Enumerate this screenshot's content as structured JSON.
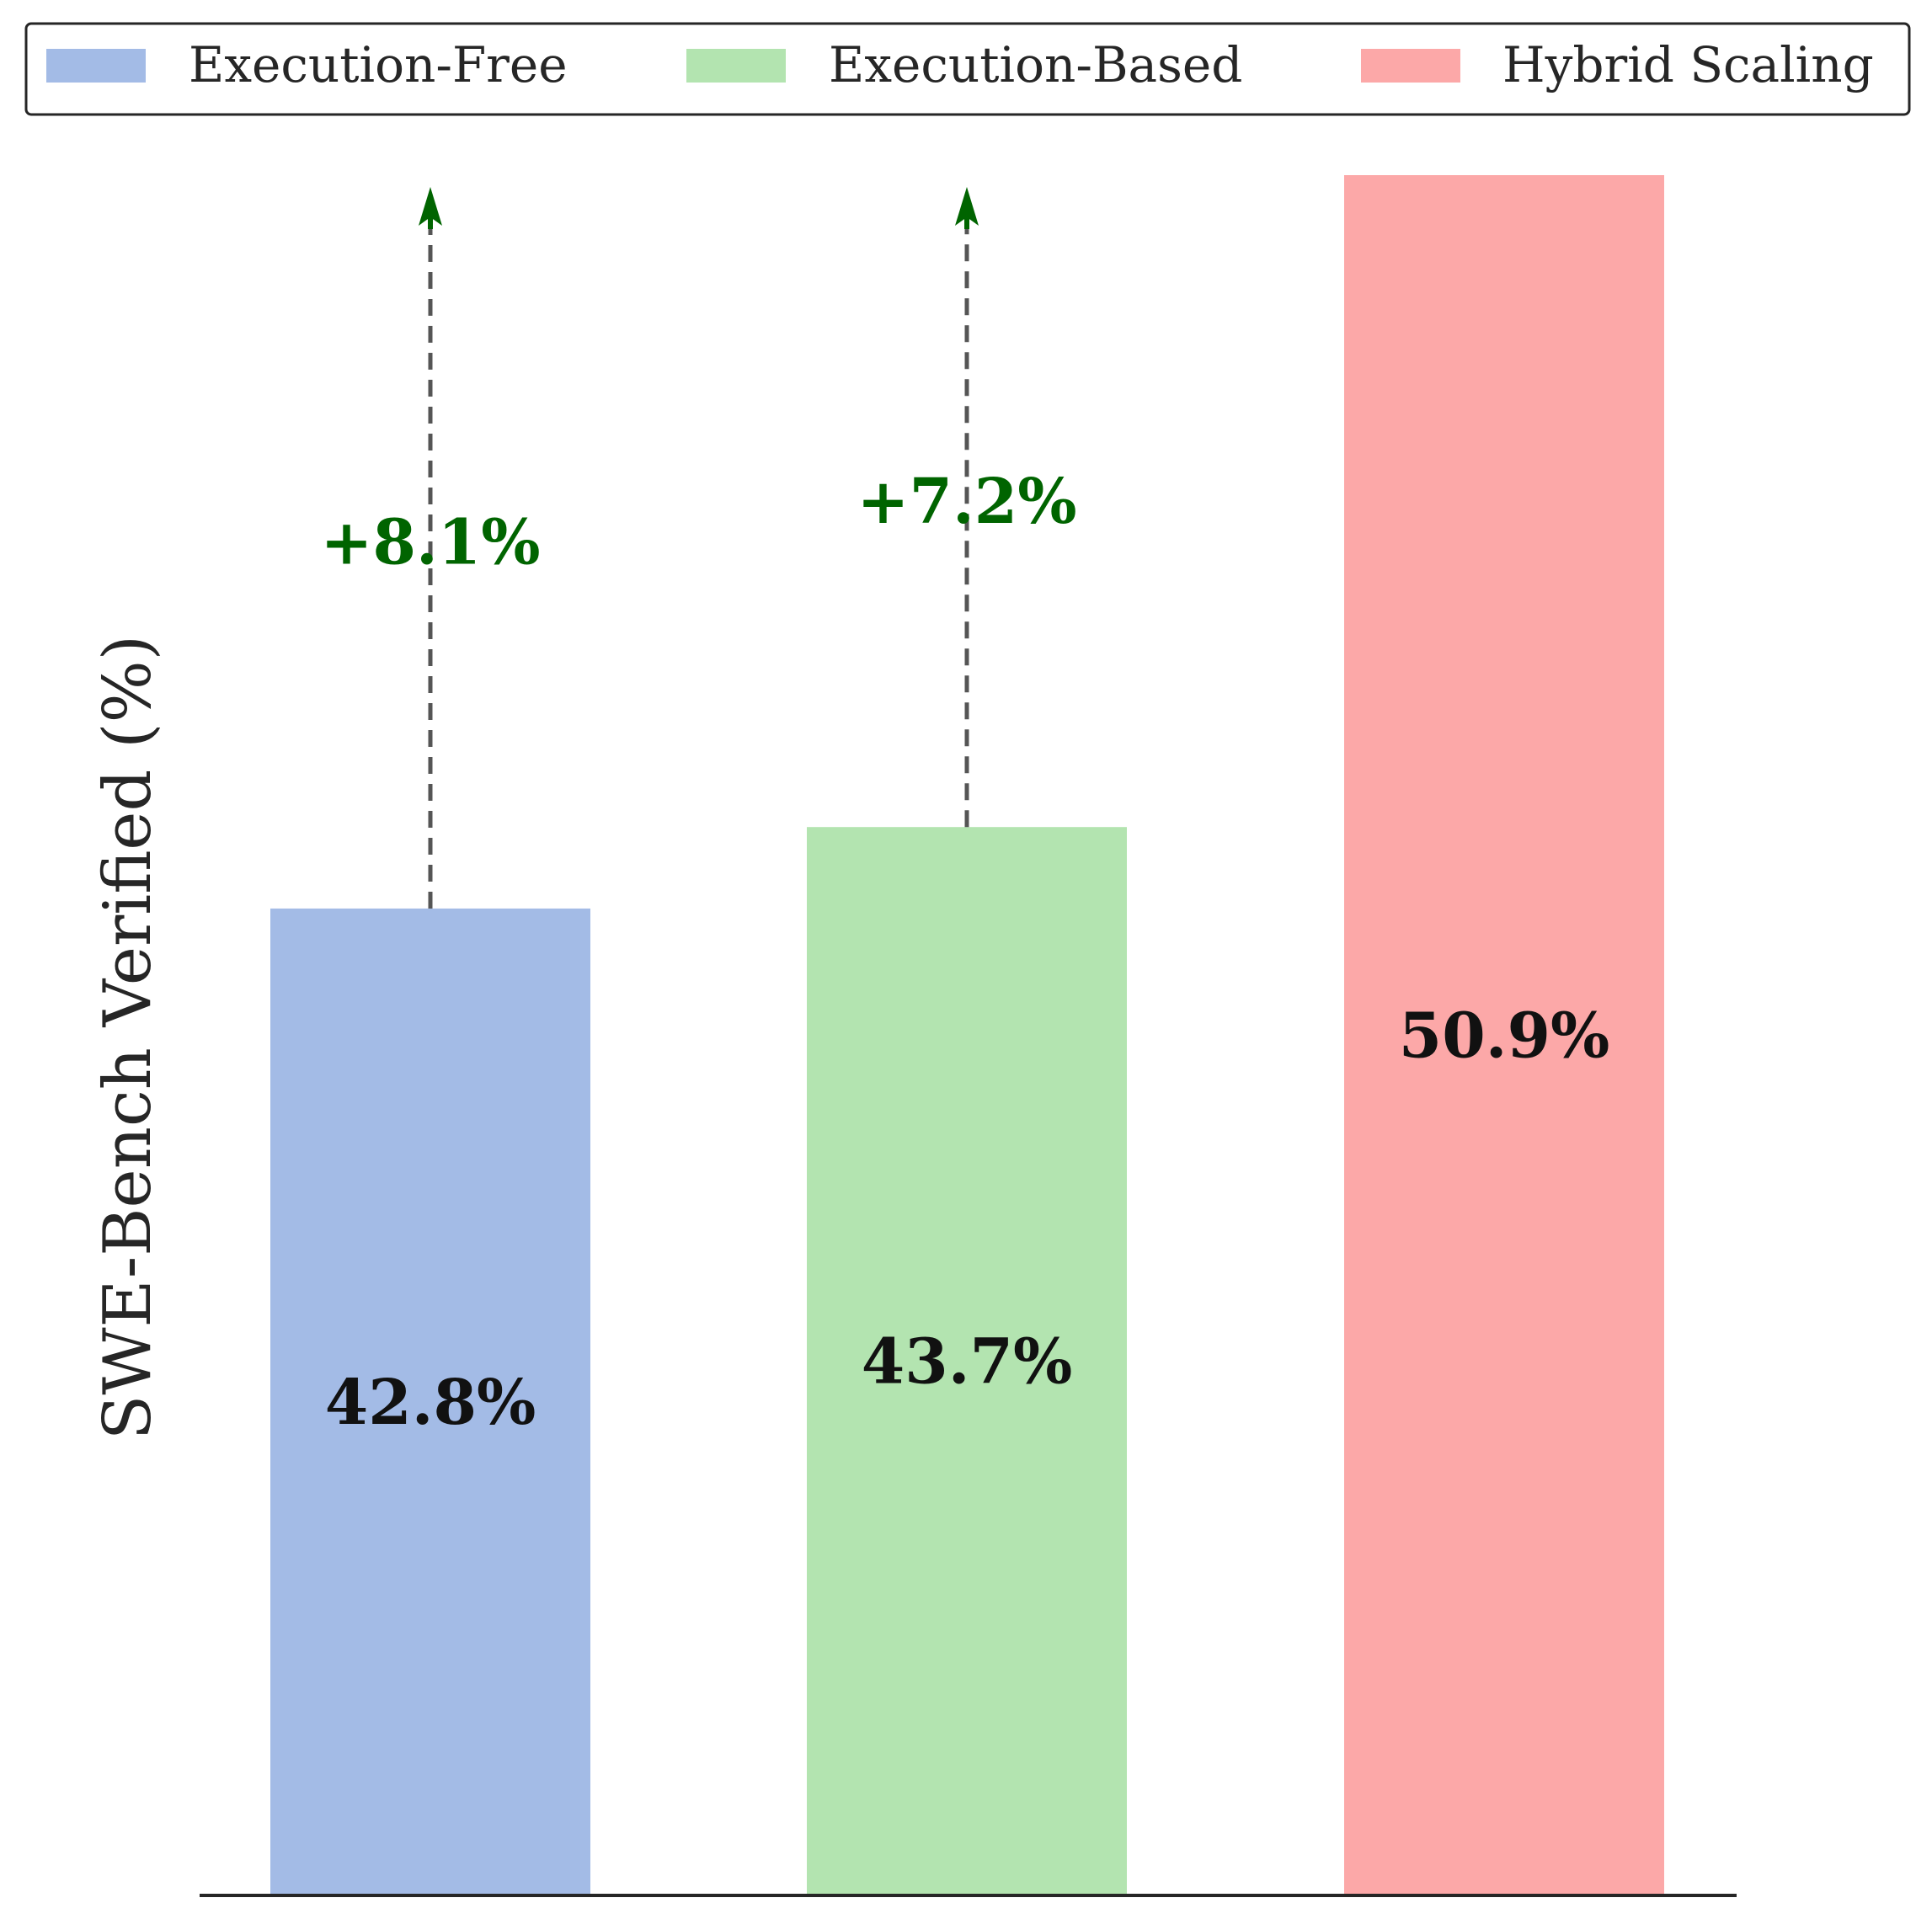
{
  "chart_data": {
    "type": "bar",
    "categories": [
      "Execution-Free",
      "Execution-Based",
      "Hybrid Scaling"
    ],
    "values": [
      42.8,
      43.7,
      50.9
    ],
    "value_labels": [
      "42.8%",
      "43.7%",
      "50.9%"
    ],
    "colors": [
      "#a3bbe6",
      "#b3e4b0",
      "#fca8a8"
    ],
    "ylabel": "SWE-Bench Verified (%)",
    "xlabel": "",
    "title": "",
    "legend": {
      "placement": "top",
      "entries": [
        "Execution-Free",
        "Execution-Based",
        "Hybrid Scaling"
      ]
    },
    "annotations": [
      {
        "from": "Execution-Free",
        "to_value": 50.9,
        "text": "+8.1%"
      },
      {
        "from": "Execution-Based",
        "to_value": 50.9,
        "text": "+7.2%"
      }
    ],
    "annotation_color": "#006400",
    "arrow_color": "#555555",
    "ylim": [
      31.9,
      50.9
    ],
    "grid": false
  }
}
